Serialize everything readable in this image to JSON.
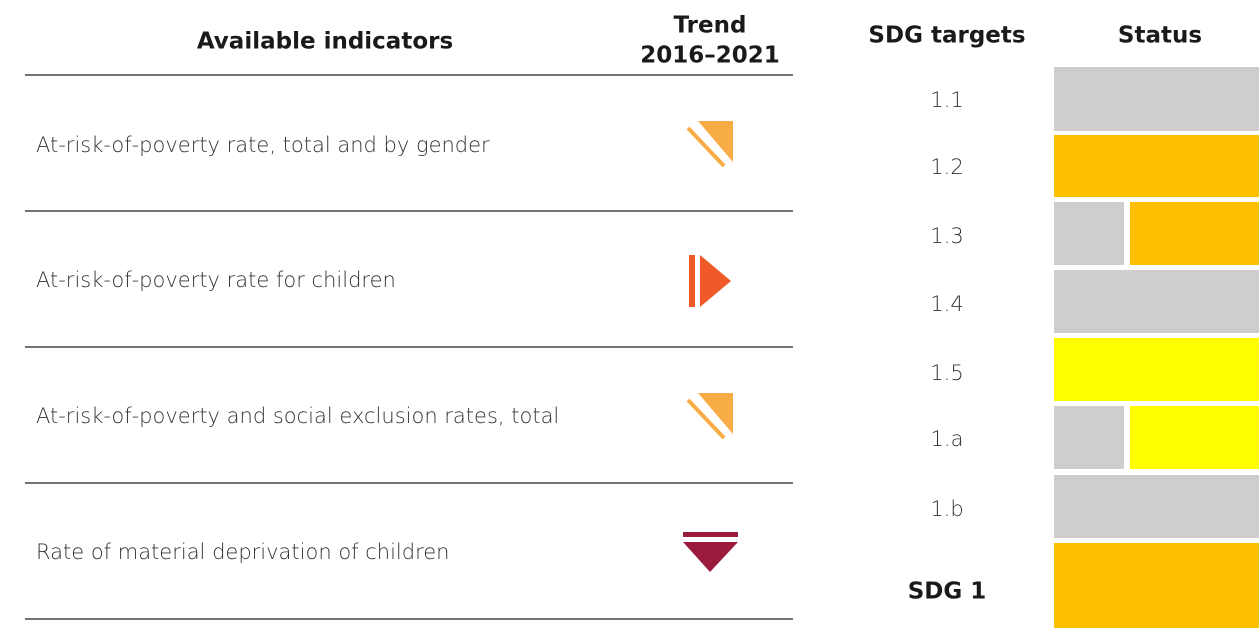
{
  "indicators": {
    "header": {
      "indicator": "Available indicators",
      "trend": [
        "Trend",
        "2016–2021"
      ]
    },
    "rows": [
      "At-risk-of-poverty rate, total and by gender",
      "At-risk-of-poverty rate for children",
      "At-risk-of-poverty and social exclusion rates, total",
      "Rate of material deprivation of children"
    ]
  },
  "targets": {
    "header": {
      "target": "SDG targets",
      "status": "Status"
    },
    "rows": [
      {
        "label": "1.1",
        "status": [
          "#cfcdce"
        ]
      },
      {
        "label": "1.2",
        "status": [
          "#fdbf00"
        ]
      },
      {
        "label": "1.3",
        "status": [
          "#cfcdce",
          "#fdbf00"
        ]
      },
      {
        "label": "1.4",
        "status": [
          "#cfcdce"
        ]
      },
      {
        "label": "1.5",
        "status": [
          "#fefe00"
        ]
      },
      {
        "label": "1.a",
        "status": [
          "#cfcdce",
          "#fefe00"
        ]
      },
      {
        "label": "1.b",
        "status": [
          "#cfcdce"
        ]
      },
      {
        "label": "SDG 1",
        "status": [
          "#fdbf00"
        ]
      }
    ]
  }
}
